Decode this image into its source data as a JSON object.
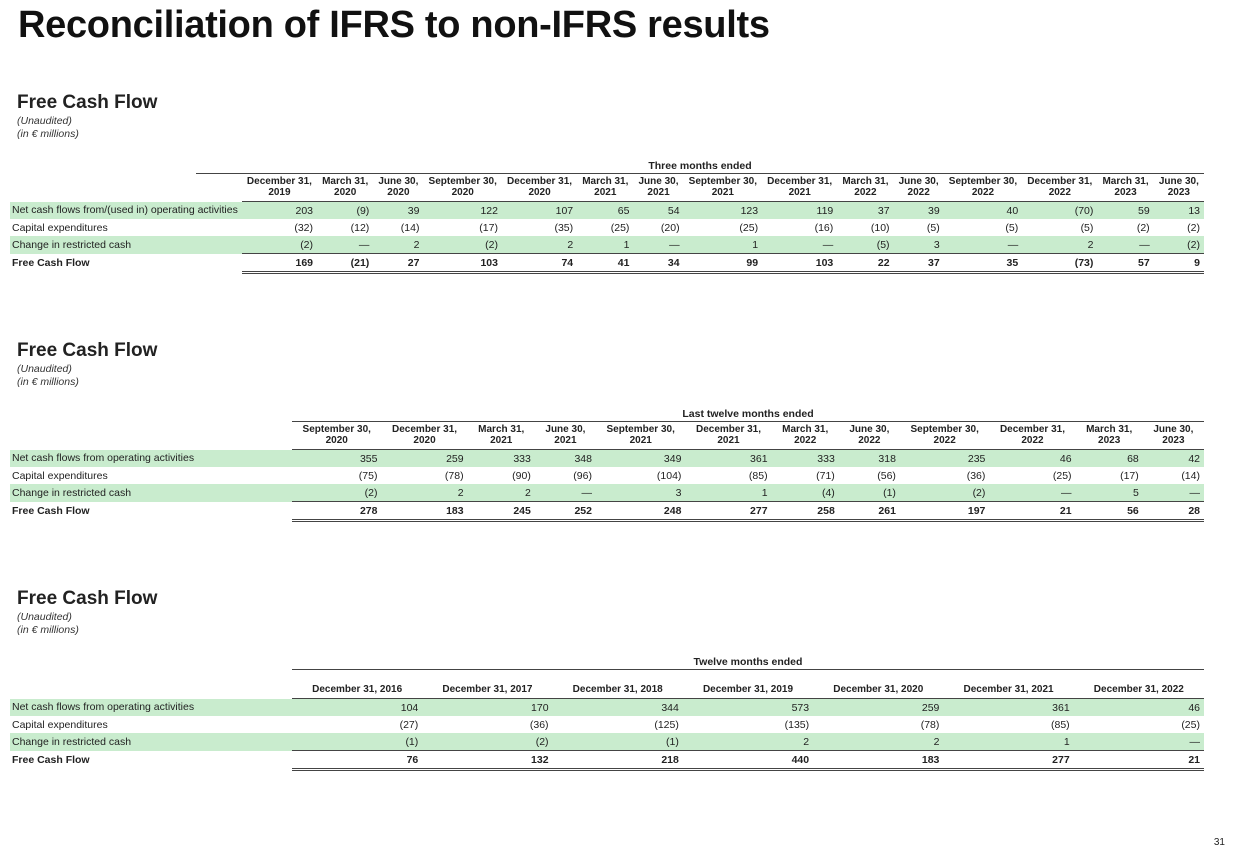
{
  "title": "Reconciliation of IFRS to non-IFRS results",
  "page_number": "31",
  "sections": [
    {
      "heading": "Free Cash Flow",
      "sub1": "(Unaudited)",
      "sub2": "(in € millions)",
      "period_title": "Three months ended",
      "columns": [
        "December 31, 2019",
        "March 31, 2020",
        "June 30, 2020",
        "September 30, 2020",
        "December 31, 2020",
        "March 31, 2021",
        "June 30, 2021",
        "September 30, 2021",
        "December 31, 2021",
        "March 31, 2022",
        "June 30, 2022",
        "September 30, 2022",
        "December 31, 2022",
        "March 31, 2023",
        "June 30, 2023"
      ],
      "rows": [
        {
          "label": "Net cash flows from/(used in) operating activities",
          "values": [
            "203",
            "(9)",
            "39",
            "122",
            "107",
            "65",
            "54",
            "123",
            "119",
            "37",
            "39",
            "40",
            "(70)",
            "59",
            "13"
          ]
        },
        {
          "label": "Capital expenditures",
          "values": [
            "(32)",
            "(12)",
            "(14)",
            "(17)",
            "(35)",
            "(25)",
            "(20)",
            "(25)",
            "(16)",
            "(10)",
            "(5)",
            "(5)",
            "(5)",
            "(2)",
            "(2)"
          ]
        },
        {
          "label": "Change in restricted cash",
          "values": [
            "(2)",
            "—",
            "2",
            "(2)",
            "2",
            "1",
            "—",
            "1",
            "—",
            "(5)",
            "3",
            "—",
            "2",
            "—",
            "(2)"
          ]
        },
        {
          "label": "Free Cash Flow",
          "values": [
            "169",
            "(21)",
            "27",
            "103",
            "74",
            "41",
            "34",
            "99",
            "103",
            "22",
            "37",
            "35",
            "(73)",
            "57",
            "9"
          ]
        }
      ]
    },
    {
      "heading": "Free Cash Flow",
      "sub1": "(Unaudited)",
      "sub2": "(in € millions)",
      "period_title": "Last twelve months ended",
      "columns": [
        "September 30, 2020",
        "December 31, 2020",
        "March 31, 2021",
        "June 30, 2021",
        "September 30, 2021",
        "December 31, 2021",
        "March 31, 2022",
        "June 30, 2022",
        "September 30, 2022",
        "December 31, 2022",
        "March 31, 2023",
        "June 30, 2023"
      ],
      "rows": [
        {
          "label": "Net cash flows from operating activities",
          "values": [
            "355",
            "259",
            "333",
            "348",
            "349",
            "361",
            "333",
            "318",
            "235",
            "46",
            "68",
            "42"
          ]
        },
        {
          "label": "Capital expenditures",
          "values": [
            "(75)",
            "(78)",
            "(90)",
            "(96)",
            "(104)",
            "(85)",
            "(71)",
            "(56)",
            "(36)",
            "(25)",
            "(17)",
            "(14)"
          ]
        },
        {
          "label": "Change in restricted cash",
          "values": [
            "(2)",
            "2",
            "2",
            "—",
            "3",
            "1",
            "(4)",
            "(1)",
            "(2)",
            "—",
            "5",
            "—"
          ]
        },
        {
          "label": "Free Cash Flow",
          "values": [
            "278",
            "183",
            "245",
            "252",
            "248",
            "277",
            "258",
            "261",
            "197",
            "21",
            "56",
            "28"
          ]
        }
      ]
    },
    {
      "heading": "Free Cash Flow",
      "sub1": "(Unaudited)",
      "sub2": "(in € millions)",
      "period_title": "Twelve months ended",
      "columns": [
        "December 31, 2016",
        "December 31, 2017",
        "December 31, 2018",
        "December 31, 2019",
        "December 31, 2020",
        "December 31, 2021",
        "December 31, 2022"
      ],
      "rows": [
        {
          "label": "Net cash flows from operating activities",
          "values": [
            "104",
            "170",
            "344",
            "573",
            "259",
            "361",
            "46"
          ]
        },
        {
          "label": "Capital expenditures",
          "values": [
            "(27)",
            "(36)",
            "(125)",
            "(135)",
            "(78)",
            "(85)",
            "(25)"
          ]
        },
        {
          "label": "Change in restricted cash",
          "values": [
            "(1)",
            "(2)",
            "(1)",
            "2",
            "2",
            "1",
            "—"
          ]
        },
        {
          "label": "Free Cash Flow",
          "values": [
            "76",
            "132",
            "218",
            "440",
            "183",
            "277",
            "21"
          ]
        }
      ]
    }
  ]
}
